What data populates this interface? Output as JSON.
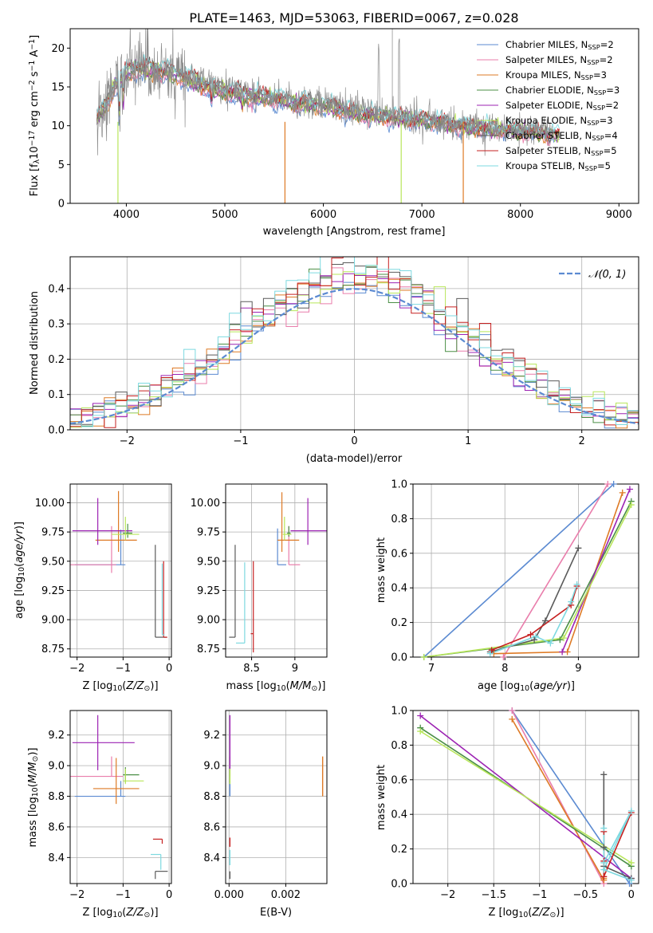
{
  "colors": {
    "chabrier_miles": "#5b8ad1",
    "salpeter_miles": "#e97dab",
    "kroupa_miles": "#de7a25",
    "chabrier_elodie": "#4b8f46",
    "salpeter_elodie": "#9c23b3",
    "kroupa_elodie": "#b8e65a",
    "chabrier_stelib": "#5a5a5a",
    "salpeter_stelib": "#c62020",
    "kroupa_stelib": "#7dd9e0",
    "grid": "#b0b0b0",
    "normal_curve": "#5b8ad1"
  },
  "chart_data": [
    {
      "id": "spectrum",
      "type": "line",
      "title": "PLATE=1463, MJD=53063, FIBERID=0067, z=0.028",
      "xlabel": "wavelength [Angstrom, rest frame]",
      "ylabel": "Flux [f_λ 10^-17 erg cm^-2 s^-1 A^-1]",
      "xlim": [
        3430,
        9200
      ],
      "ylim": [
        0,
        22.5
      ],
      "xticks": [
        4000,
        5000,
        6000,
        7000,
        8000,
        9000
      ],
      "yticks": [
        0,
        5,
        10,
        15,
        20
      ],
      "legend_position": "top-right",
      "legend": [
        "Chabrier MILES, N_SSP=2",
        "Salpeter MILES, N_SSP=2",
        "Kroupa MILES, N_SSP=3",
        "Chabrier ELODIE, N_SSP=3",
        "Salpeter ELODIE, N_SSP=2",
        "Kroupa ELODIE, N_SSP=3",
        "Chabrier STELIB, N_SSP=4",
        "Salpeter STELIB, N_SSP=5",
        "Kroupa STELIB, N_SSP=5"
      ],
      "data_continuum": {
        "x": [
          3700,
          3800,
          3900,
          4000,
          4100,
          4200,
          4300,
          4500,
          4700,
          4900,
          5100,
          5300,
          5500,
          5700,
          5900,
          6100,
          6300,
          6500,
          6700,
          6900,
          7100,
          7300,
          7500,
          7700,
          7900,
          8100,
          8300,
          8400
        ],
        "y": [
          11,
          13,
          16,
          17,
          18,
          17.5,
          17.5,
          17,
          16,
          15,
          14.5,
          14,
          13.8,
          13.3,
          13,
          12.6,
          12,
          11.6,
          11.3,
          11,
          10.8,
          10.4,
          10,
          9.8,
          9.6,
          9.4,
          9.1,
          9
        ]
      },
      "grid": false
    },
    {
      "id": "residuals",
      "type": "histogram",
      "xlabel": "(data-model)/error",
      "ylabel": "Normed distribution",
      "xlim": [
        -2.5,
        2.5
      ],
      "ylim": [
        0,
        0.49
      ],
      "xticks": [
        -2,
        -1,
        0,
        1,
        2
      ],
      "yticks": [
        0.0,
        0.1,
        0.2,
        0.3,
        0.4
      ],
      "legend": [
        "𝒩(0, 1)"
      ],
      "legend_position": "top-right",
      "normal_curve": {
        "mean": 0,
        "sigma": 1
      },
      "grid": true
    },
    {
      "id": "age_vs_Z",
      "type": "errorbar",
      "xlabel": "Z [log10(Z/Z⊙)]",
      "ylabel": "age  [log10(age/yr)]",
      "xlim": [
        -2.15,
        0.05
      ],
      "ylim": [
        8.68,
        10.16
      ],
      "xticks": [
        -2,
        -1,
        0
      ],
      "yticks": [
        8.75,
        9.0,
        9.25,
        9.5,
        9.75,
        10.0
      ],
      "points": [
        {
          "series": "chabrier_miles",
          "x": -1.05,
          "xerr": [
            1.0,
            0.1
          ],
          "y": 9.47,
          "yerr": [
            0.0,
            0.3
          ]
        },
        {
          "series": "salpeter_miles",
          "x": -1.25,
          "xerr": [
            0.9,
            0.1
          ],
          "y": 9.47,
          "yerr": [
            0.07,
            0.33
          ]
        },
        {
          "series": "kroupa_miles",
          "x": -1.1,
          "xerr": [
            0.5,
            0.4
          ],
          "y": 9.68,
          "yerr": [
            0.1,
            0.42
          ]
        },
        {
          "series": "chabrier_elodie",
          "x": -0.9,
          "xerr": [
            0.1,
            0.1
          ],
          "y": 9.74,
          "yerr": [
            0.04,
            0.08
          ]
        },
        {
          "series": "salpeter_elodie",
          "x": -1.55,
          "xerr": [
            0.55,
            0.75
          ],
          "y": 9.76,
          "yerr": [
            0.12,
            0.28
          ]
        },
        {
          "series": "kroupa_elodie",
          "x": -0.95,
          "xerr": [
            0.3,
            0.3
          ],
          "y": 9.73,
          "yerr": [
            0.05,
            0.15
          ]
        },
        {
          "series": "chabrier_stelib",
          "x": -0.3,
          "xerr": [
            0.0,
            0.25
          ],
          "y": 8.85,
          "yerr": [
            0.0,
            0.79
          ]
        },
        {
          "series": "salpeter_stelib",
          "x": -0.12,
          "xerr": [
            0.0,
            0.08
          ],
          "y": 8.85,
          "yerr": [
            0.0,
            0.65
          ]
        },
        {
          "series": "kroupa_stelib",
          "x": -0.15,
          "xerr": [
            0.0,
            0.05
          ],
          "y": 8.87,
          "yerr": [
            0.0,
            0.61
          ]
        }
      ],
      "grid": true
    },
    {
      "id": "age_vs_mass",
      "type": "errorbar",
      "xlabel": "mass [log10(M/M⊙)]",
      "ylabel": "",
      "xlim": [
        8.2,
        9.37
      ],
      "ylim": [
        8.68,
        10.16
      ],
      "xticks": [
        8.5,
        9.0
      ],
      "yticks": [
        8.75,
        9.0,
        9.25,
        9.5,
        9.75,
        10.0
      ],
      "points": [
        {
          "series": "chabrier_miles",
          "x": 8.8,
          "xerr": [
            0.0,
            0.1
          ],
          "y": 9.47,
          "yerr": [
            0.0,
            0.31
          ]
        },
        {
          "series": "salpeter_miles",
          "x": 8.93,
          "xerr": [
            0.0,
            0.13
          ],
          "y": 9.47,
          "yerr": [
            0.0,
            0.33
          ]
        },
        {
          "series": "kroupa_miles",
          "x": 8.85,
          "xerr": [
            0.05,
            0.2
          ],
          "y": 9.68,
          "yerr": [
            0.1,
            0.41
          ]
        },
        {
          "series": "chabrier_elodie",
          "x": 8.93,
          "xerr": [
            0.02,
            0.02
          ],
          "y": 9.74,
          "yerr": [
            0.03,
            0.06
          ]
        },
        {
          "series": "salpeter_elodie",
          "x": 9.15,
          "xerr": [
            0.2,
            0.35
          ],
          "y": 9.76,
          "yerr": [
            0.12,
            0.28
          ]
        },
        {
          "series": "kroupa_elodie",
          "x": 8.88,
          "xerr": [
            0.02,
            0.08
          ],
          "y": 9.73,
          "yerr": [
            0.05,
            0.15
          ]
        },
        {
          "series": "chabrier_stelib",
          "x": 8.31,
          "xerr": [
            0.07,
            0.0
          ],
          "y": 8.85,
          "yerr": [
            0.0,
            0.79
          ]
        },
        {
          "series": "salpeter_stelib",
          "x": 8.52,
          "xerr": [
            0.03,
            0.0
          ],
          "y": 8.88,
          "yerr": [
            0.16,
            0.62
          ]
        },
        {
          "series": "kroupa_stelib",
          "x": 8.42,
          "xerr": [
            0.1,
            0.0
          ],
          "y": 8.8,
          "yerr": [
            0.0,
            0.69
          ]
        }
      ],
      "grid": true
    },
    {
      "id": "weight_vs_age",
      "type": "line",
      "xlabel": "age  [log10(age/yr)]",
      "ylabel": "mass weight",
      "xlim": [
        6.75,
        9.82
      ],
      "ylim": [
        0,
        1
      ],
      "xticks": [
        7,
        8,
        9
      ],
      "yticks": [
        0.0,
        0.2,
        0.4,
        0.6,
        0.8,
        1.0
      ],
      "series": [
        {
          "key": "chabrier_miles",
          "x": [
            6.9,
            9.48
          ],
          "y": [
            0.0,
            1.0
          ]
        },
        {
          "key": "salpeter_miles",
          "x": [
            7.98,
            9.4
          ],
          "y": [
            0.0,
            1.0
          ]
        },
        {
          "key": "kroupa_miles",
          "x": [
            7.85,
            8.85,
            9.6
          ],
          "y": [
            0.02,
            0.03,
            0.95
          ]
        },
        {
          "key": "chabrier_elodie",
          "x": [
            6.9,
            8.75,
            9.72
          ],
          "y": [
            0.0,
            0.1,
            0.9
          ]
        },
        {
          "key": "salpeter_elodie",
          "x": [
            8.78,
            9.7
          ],
          "y": [
            0.03,
            0.97
          ]
        },
        {
          "key": "kroupa_elodie",
          "x": [
            6.9,
            8.8,
            9.72
          ],
          "y": [
            0.0,
            0.11,
            0.88
          ]
        },
        {
          "key": "chabrier_stelib",
          "x": [
            7.8,
            8.4,
            8.55,
            9.0
          ],
          "y": [
            0.03,
            0.1,
            0.21,
            0.63
          ]
        },
        {
          "key": "salpeter_stelib",
          "x": [
            7.82,
            8.35,
            8.9,
            8.98
          ],
          "y": [
            0.04,
            0.13,
            0.3,
            0.41
          ]
        },
        {
          "key": "kroupa_stelib",
          "x": [
            7.8,
            8.42,
            8.62,
            8.9,
            8.98
          ],
          "y": [
            0.02,
            0.12,
            0.08,
            0.32,
            0.42
          ]
        }
      ],
      "grid": true
    },
    {
      "id": "mass_vs_Z",
      "type": "errorbar",
      "xlabel": "Z [log10(Z/Z⊙)]",
      "ylabel": "mass [log10(M/M⊙)]",
      "xlim": [
        -2.15,
        0.05
      ],
      "ylim": [
        8.23,
        9.36
      ],
      "xticks": [
        -2,
        -1,
        0
      ],
      "yticks": [
        8.4,
        8.6,
        8.8,
        9.0,
        9.2
      ],
      "points": [
        {
          "series": "chabrier_miles",
          "x": -1.05,
          "xerr": [
            1.0,
            0.1
          ],
          "y": 8.8,
          "yerr": [
            0.0,
            0.1
          ]
        },
        {
          "series": "salpeter_miles",
          "x": -1.25,
          "xerr": [
            0.9,
            0.25
          ],
          "y": 8.93,
          "yerr": [
            0.0,
            0.13
          ]
        },
        {
          "series": "kroupa_miles",
          "x": -1.15,
          "xerr": [
            0.5,
            0.5
          ],
          "y": 8.85,
          "yerr": [
            0.1,
            0.2
          ]
        },
        {
          "series": "chabrier_elodie",
          "x": -0.95,
          "xerr": [
            0.05,
            0.3
          ],
          "y": 8.94,
          "yerr": [
            0.05,
            0.05
          ]
        },
        {
          "series": "salpeter_elodie",
          "x": -1.55,
          "xerr": [
            0.55,
            0.8
          ],
          "y": 9.15,
          "yerr": [
            0.18,
            0.18
          ]
        },
        {
          "series": "kroupa_elodie",
          "x": -0.95,
          "xerr": [
            0.05,
            0.4
          ],
          "y": 8.9,
          "yerr": [
            0.02,
            0.08
          ]
        },
        {
          "series": "chabrier_stelib",
          "x": -0.3,
          "xerr": [
            0.0,
            0.27
          ],
          "y": 8.31,
          "yerr": [
            0.05,
            0.0
          ]
        },
        {
          "series": "salpeter_stelib",
          "x": -0.15,
          "xerr": [
            0.2,
            0.0
          ],
          "y": 8.52,
          "yerr": [
            0.03,
            0.0
          ]
        },
        {
          "series": "kroupa_stelib",
          "x": -0.18,
          "xerr": [
            0.22,
            0.0
          ],
          "y": 8.42,
          "yerr": [
            0.1,
            0.0
          ]
        }
      ],
      "grid": true
    },
    {
      "id": "mass_vs_ebv",
      "type": "errorbar",
      "xlabel": "E(B-V)",
      "ylabel": "",
      "xlim": [
        -0.00012,
        0.00345
      ],
      "ylim": [
        8.23,
        9.36
      ],
      "xticks": [
        0.0,
        0.002
      ],
      "xticklabels": [
        "0.000",
        "0.002"
      ],
      "yticks": [
        8.4,
        8.6,
        8.8,
        9.0,
        9.2
      ],
      "points": [
        {
          "series": "chabrier_miles",
          "x": 3e-05,
          "y": 8.8,
          "yerr": [
            0.0,
            0.1
          ]
        },
        {
          "series": "salpeter_miles",
          "x": 3e-05,
          "y": 8.93,
          "yerr": [
            0.0,
            0.13
          ]
        },
        {
          "series": "kroupa_miles",
          "x": 0.0033,
          "y": 8.93,
          "yerr": [
            0.13,
            0.13
          ]
        },
        {
          "series": "chabrier_elodie",
          "x": 3e-05,
          "y": 8.94,
          "yerr": [
            0.05,
            0.05
          ]
        },
        {
          "series": "salpeter_elodie",
          "x": 3e-05,
          "y": 9.15,
          "yerr": [
            0.18,
            0.18
          ]
        },
        {
          "series": "kroupa_elodie",
          "x": 3e-05,
          "y": 8.9,
          "yerr": [
            0.02,
            0.08
          ]
        },
        {
          "series": "chabrier_stelib",
          "x": 3e-05,
          "y": 8.31,
          "yerr": [
            0.05,
            0.0
          ]
        },
        {
          "series": "salpeter_stelib",
          "x": 3e-05,
          "y": 8.5,
          "yerr": [
            0.03,
            0.03
          ]
        },
        {
          "series": "kroupa_stelib",
          "x": 3e-05,
          "y": 8.4,
          "yerr": [
            0.05,
            0.05
          ]
        }
      ],
      "grid": true
    },
    {
      "id": "weight_vs_Z",
      "type": "line",
      "xlabel": "Z [log10(Z/Z⊙)]",
      "ylabel": "mass weight",
      "xlim": [
        -2.38,
        0.08
      ],
      "ylim": [
        0,
        1
      ],
      "xticks": [
        -2.0,
        -1.5,
        -1.0,
        -0.5,
        0.0
      ],
      "yticks": [
        0.0,
        0.2,
        0.4,
        0.6,
        0.8,
        1.0
      ],
      "series": [
        {
          "key": "chabrier_miles",
          "x": [
            -1.3,
            -0.02
          ],
          "y": [
            1.0,
            0.0
          ]
        },
        {
          "key": "salpeter_miles",
          "x": [
            -1.3,
            -0.3
          ],
          "y": [
            1.0,
            0.0
          ]
        },
        {
          "key": "kroupa_miles",
          "x": [
            -1.3,
            -0.3,
            -0.3
          ],
          "y": [
            0.95,
            0.02,
            0.03
          ]
        },
        {
          "key": "chabrier_elodie",
          "x": [
            -2.3,
            0.0
          ],
          "y": [
            0.9,
            0.1
          ]
        },
        {
          "key": "salpeter_elodie",
          "x": [
            -2.3,
            0.0
          ],
          "y": [
            0.97,
            0.03
          ]
        },
        {
          "key": "kroupa_elodie",
          "x": [
            -2.3,
            0.0
          ],
          "y": [
            0.88,
            0.12
          ]
        },
        {
          "key": "chabrier_stelib",
          "x": [
            -0.3,
            -0.3,
            -0.3,
            0.0
          ],
          "y": [
            0.63,
            0.21,
            0.1,
            0.03
          ]
        },
        {
          "key": "salpeter_stelib",
          "x": [
            -0.3,
            -0.3,
            -0.3,
            0.0
          ],
          "y": [
            0.3,
            0.13,
            0.04,
            0.41
          ]
        },
        {
          "key": "kroupa_stelib",
          "x": [
            -0.3,
            -0.3,
            0.0,
            -0.3,
            0.0
          ],
          "y": [
            0.32,
            0.12,
            0.42,
            0.08,
            0.02
          ]
        }
      ],
      "grid": true
    }
  ]
}
